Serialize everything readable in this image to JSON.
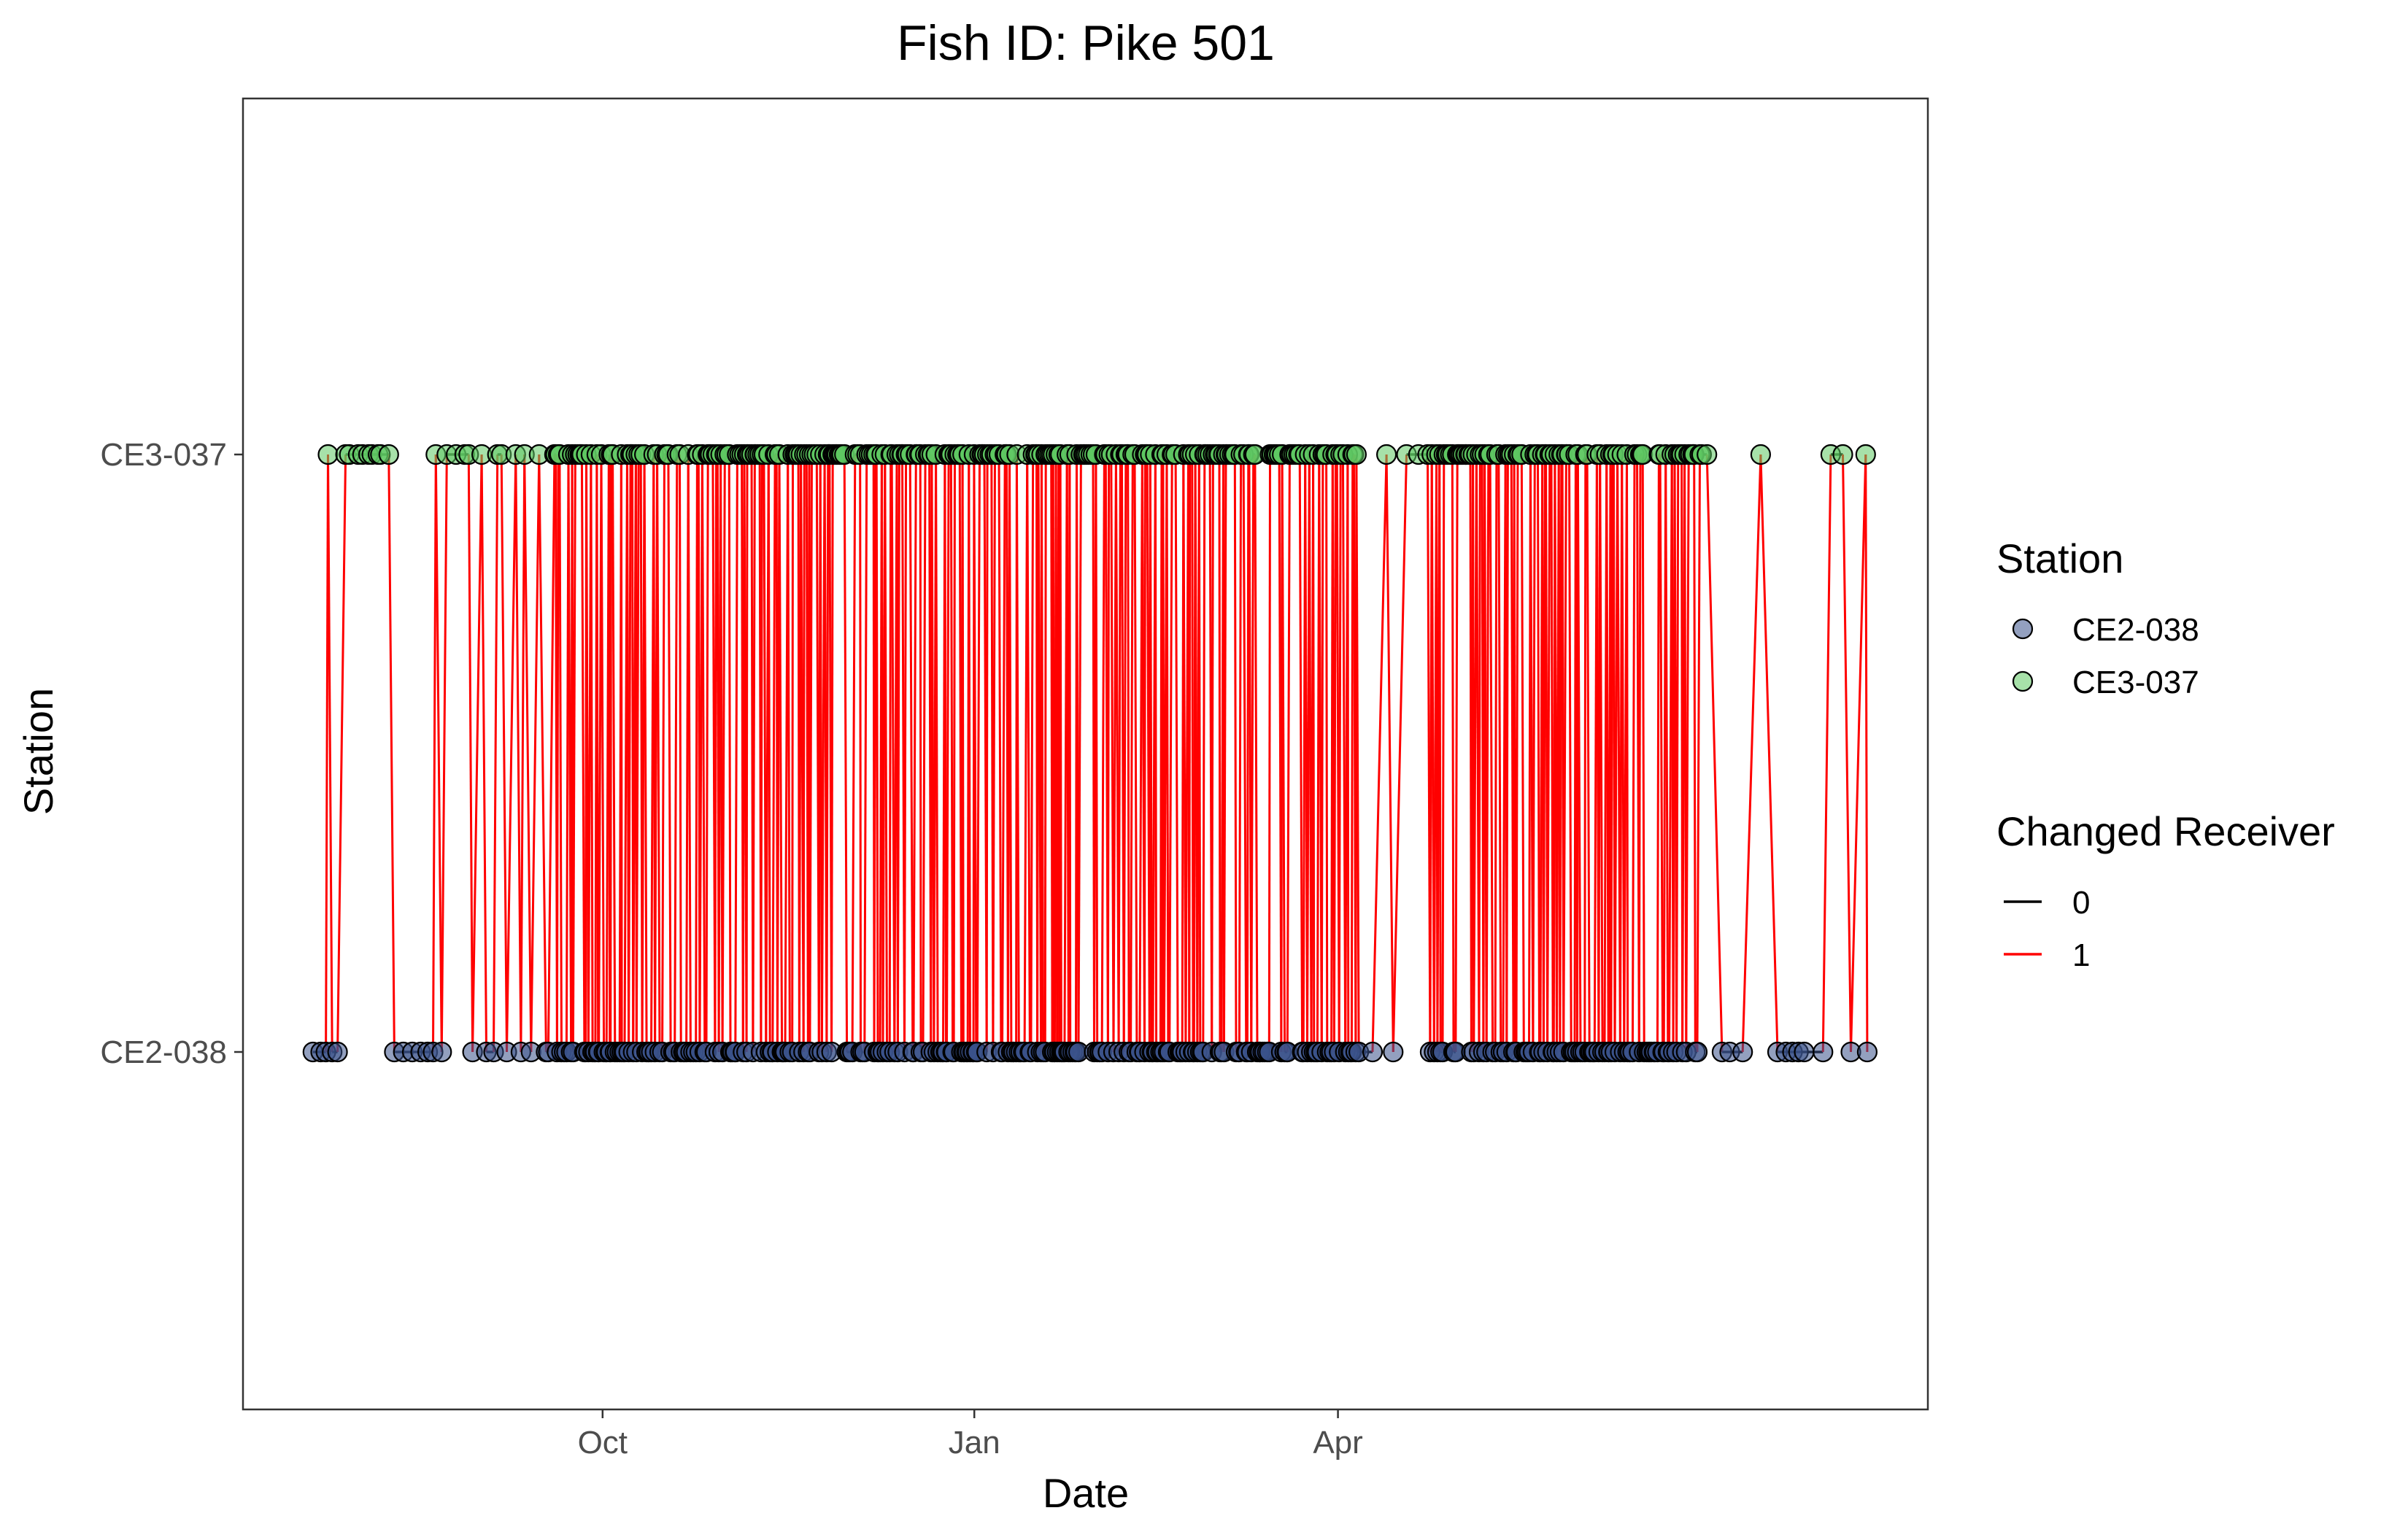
{
  "chart_data": {
    "type": "scatter",
    "title": "Fish ID: Pike 501",
    "xlabel": "Date",
    "ylabel": "Station",
    "x_ticks": [
      "Oct",
      "Jan",
      "Apr"
    ],
    "x_tick_dates": [
      "2021-10-01",
      "2022-01-01",
      "2022-04-01"
    ],
    "xlim": [
      "2021-07-04",
      "2022-08-25"
    ],
    "y_categories": [
      "CE2-038",
      "CE3-037"
    ],
    "grid": false,
    "legend_placement": "right",
    "legends": [
      {
        "title": "Station",
        "kind": "point",
        "entries": [
          {
            "label": "CE2-038",
            "color": "#3b528b"
          },
          {
            "label": "CE3-037",
            "color": "#5ec962"
          }
        ]
      },
      {
        "title": "Changed Receiver",
        "kind": "line",
        "entries": [
          {
            "label": "0",
            "color": "#000000"
          },
          {
            "label": "1",
            "color": "#ff0000"
          }
        ]
      }
    ],
    "first_detection": "2021-07-20",
    "last_detection": "2022-08-10"
  }
}
